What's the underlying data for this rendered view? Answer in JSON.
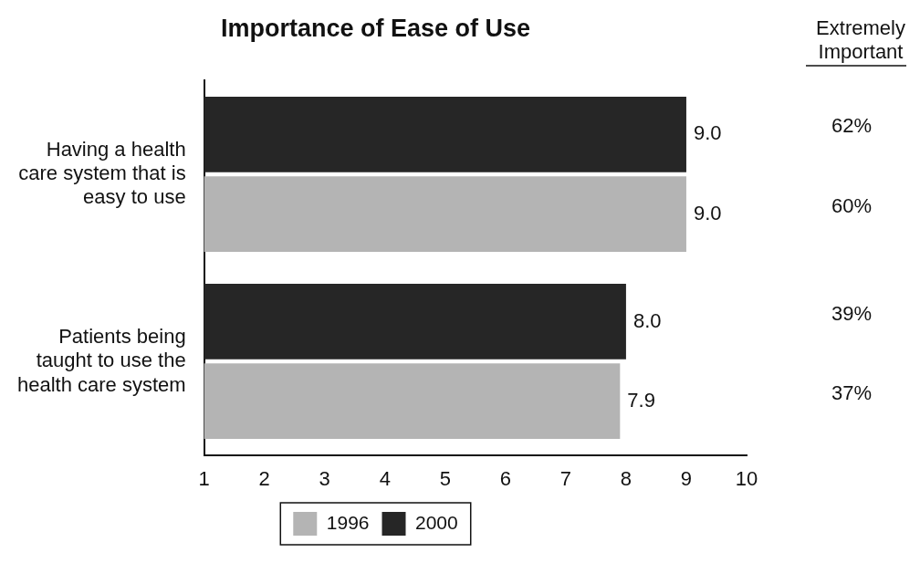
{
  "chart_data": {
    "type": "bar",
    "orientation": "horizontal",
    "title": "Importance of Ease of Use",
    "categories": [
      "Having a health care system that is easy to use",
      "Patients being taught to use the health care system"
    ],
    "series": [
      {
        "name": "2000",
        "color": "#262626",
        "values": [
          9.0,
          8.0
        ],
        "value_labels": [
          "9.0",
          "8.0"
        ]
      },
      {
        "name": "1996",
        "color": "#b4b4b4",
        "values": [
          9.0,
          7.9
        ],
        "value_labels": [
          "9.0",
          "7.9"
        ]
      }
    ],
    "xlim": [
      1,
      10
    ],
    "xticks": [
      1,
      2,
      3,
      4,
      5,
      6,
      7,
      8,
      9,
      10
    ],
    "grid": false,
    "legend": "bottom",
    "annotations": [
      "Extremely Important",
      "62%",
      "60%",
      "39%",
      "37%"
    ]
  }
}
